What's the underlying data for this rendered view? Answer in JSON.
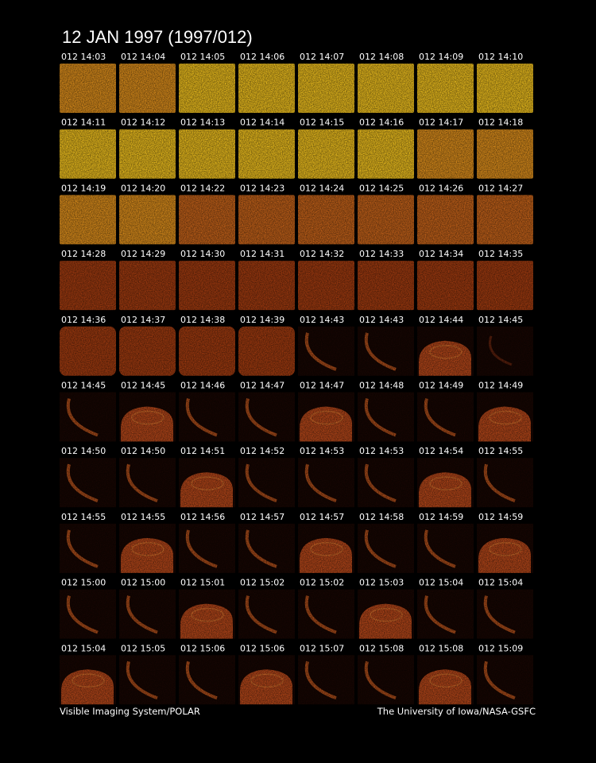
{
  "title": "12 JAN 1997  (1997/012)",
  "frames": [
    [
      "012 14:03",
      "012 14:04",
      "012 14:05",
      "012 14:06",
      "012 14:07",
      "012 14:08",
      "012 14:09",
      "012 14:10"
    ],
    [
      "012 14:11",
      "012 14:12",
      "012 14:13",
      "012 14:14",
      "012 14:15",
      "012 14:16",
      "012 14:17",
      "012 14:18"
    ],
    [
      "012 14:19",
      "012 14:20",
      "012 14:22",
      "012 14:23",
      "012 14:24",
      "012 14:25",
      "012 14:26",
      "012 14:27"
    ],
    [
      "012 14:28",
      "012 14:29",
      "012 14:30",
      "012 14:31",
      "012 14:32",
      "012 14:33",
      "012 14:34",
      "012 14:35"
    ],
    [
      "012 14:36",
      "012 14:37",
      "012 14:38",
      "012 14:39",
      "012 14:43",
      "012 14:43",
      "012 14:44",
      "012 14:45"
    ],
    [
      "012 14:45",
      "012 14:45",
      "012 14:46",
      "012 14:47",
      "012 14:47",
      "012 14:48",
      "012 14:49",
      "012 14:49"
    ],
    [
      "012 14:50",
      "012 14:50",
      "012 14:51",
      "012 14:52",
      "012 14:53",
      "012 14:53",
      "012 14:54",
      "012 14:55"
    ],
    [
      "012 14:55",
      "012 14:55",
      "012 14:56",
      "012 14:57",
      "012 14:57",
      "012 14:58",
      "012 14:59",
      "012 14:59"
    ],
    [
      "012 15:00",
      "012 15:00",
      "012 15:01",
      "012 15:02",
      "012 15:02",
      "012 15:03",
      "012 15:04",
      "012 15:04"
    ],
    [
      "012 15:04",
      "012 15:05",
      "012 15:06",
      "012 15:06",
      "012 15:07",
      "012 15:08",
      "012 15:08",
      "012 15:09"
    ]
  ],
  "footer": {
    "left": "Visible Imaging System/POLAR",
    "right": "The University of Iowa/NASA-GSFC"
  }
}
